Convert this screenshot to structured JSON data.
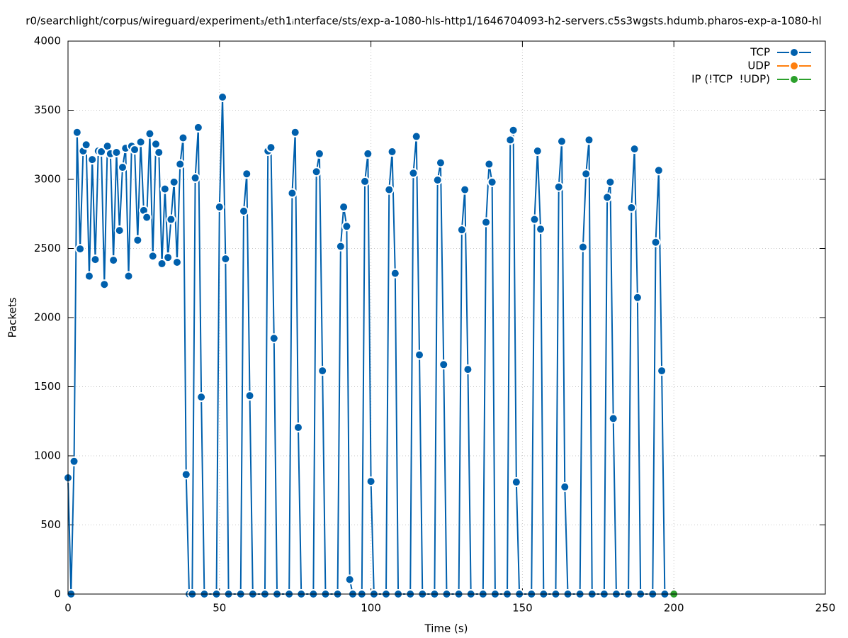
{
  "chart_data": {
    "type": "line",
    "title": "r0/searchlight/corpus/wireguard/experiment₃/eth1ᵢnterface/sts/exp-a-1080-hls-http1/1646704093-h2-servers.c5s3wgsts.hdumb.pharos-exp-a-1080-hl",
    "x_label": "Time (s)",
    "y_label": "Packets",
    "xlim": [
      0,
      250
    ],
    "xticks": [
      0,
      50,
      100,
      150,
      200,
      250
    ],
    "ylim": [
      0,
      4000
    ],
    "yticks": [
      0,
      500,
      1000,
      1500,
      2000,
      2500,
      3000,
      3500,
      4000
    ],
    "grid": true,
    "legend": "top-right",
    "series": [
      {
        "name": "TCP",
        "color": "#0060ad",
        "x": [
          0,
          1,
          2,
          3,
          4,
          5,
          6,
          7,
          8,
          9,
          10,
          11,
          12,
          13,
          14,
          15,
          16,
          17,
          18,
          19,
          20,
          21,
          22,
          23,
          24,
          25,
          26,
          27,
          28,
          29,
          30,
          31,
          32,
          33,
          34,
          35,
          36,
          37,
          38,
          39,
          40,
          41,
          42,
          43,
          44,
          45,
          49,
          50,
          51,
          52,
          53,
          57,
          58,
          59,
          60,
          61,
          65,
          66,
          67,
          68,
          69,
          73,
          74,
          75,
          76,
          77,
          81,
          82,
          83,
          84,
          85,
          89,
          90,
          91,
          92,
          93,
          94,
          97,
          98,
          99,
          100,
          101,
          105,
          106,
          107,
          108,
          109,
          113,
          114,
          115,
          116,
          117,
          121,
          122,
          123,
          124,
          125,
          129,
          130,
          131,
          132,
          133,
          137,
          138,
          139,
          140,
          141,
          145,
          146,
          147,
          148,
          149,
          153,
          154,
          155,
          156,
          157,
          161,
          162,
          163,
          164,
          165,
          169,
          170,
          171,
          172,
          173,
          177,
          178,
          179,
          180,
          181,
          185,
          186,
          187,
          188,
          189,
          193,
          194,
          195,
          196,
          197
        ],
        "values": [
          841,
          0,
          960,
          3340,
          2497,
          3205,
          3250,
          2300,
          3143,
          2420,
          3205,
          3200,
          2240,
          3240,
          3185,
          2415,
          3195,
          2630,
          3087,
          3225,
          2300,
          3240,
          3215,
          2560,
          3270,
          2775,
          2725,
          3330,
          2445,
          3255,
          3195,
          2390,
          2930,
          2435,
          2710,
          2980,
          2400,
          3110,
          3300,
          865,
          0,
          0,
          3010,
          3375,
          1425,
          0,
          0,
          2800,
          3595,
          2425,
          0,
          0,
          2770,
          3040,
          1435,
          0,
          0,
          3205,
          3230,
          1850,
          0,
          0,
          2900,
          3340,
          1205,
          0,
          0,
          3055,
          3185,
          1615,
          0,
          0,
          2515,
          2800,
          2660,
          105,
          0,
          0,
          2985,
          3185,
          815,
          0,
          0,
          2925,
          3200,
          2320,
          0,
          0,
          3045,
          3310,
          1730,
          0,
          0,
          2995,
          3120,
          1660,
          0,
          0,
          2635,
          2925,
          1625,
          0,
          0,
          2690,
          3110,
          2980,
          0,
          0,
          3285,
          3355,
          810,
          0,
          0,
          2710,
          3205,
          2640,
          0,
          0,
          2945,
          3275,
          775,
          0,
          0,
          2510,
          3040,
          3285,
          0,
          0,
          2870,
          2980,
          1270,
          0,
          0,
          2795,
          3220,
          2145,
          0,
          0,
          2545,
          3065,
          1615,
          0
        ]
      },
      {
        "name": "UDP",
        "color": "#ff7f0e",
        "x": [],
        "values": []
      },
      {
        "name": "IP (!TCP  !UDP)",
        "color": "#2ca02c",
        "x": [
          200
        ],
        "values": [
          0
        ]
      }
    ]
  }
}
